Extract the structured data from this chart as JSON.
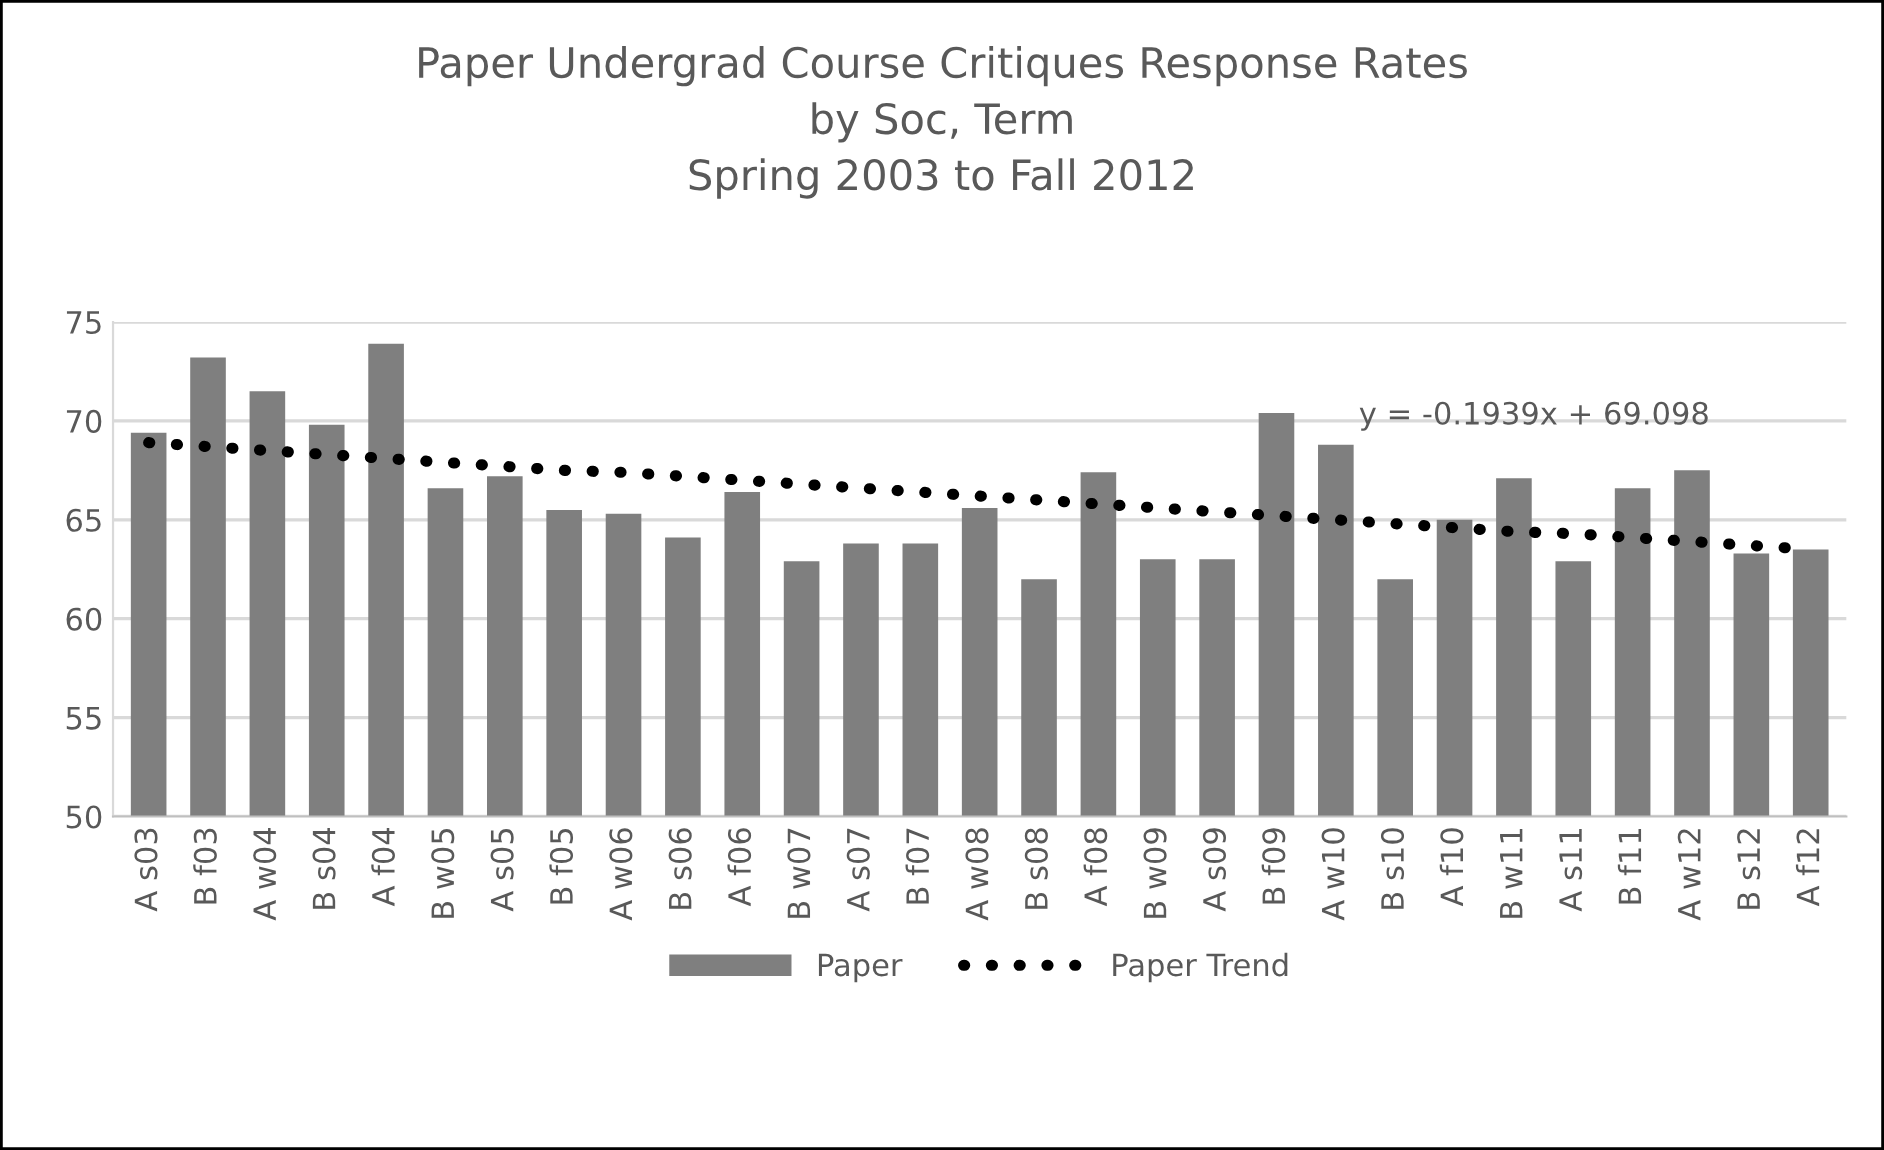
{
  "chart_data": {
    "type": "bar",
    "title": "Paper Undergrad Course Critiques Response Rates\nby Soc, Term\nSpring 2003 to Fall 2012",
    "categories": [
      "A s03",
      "B f03",
      "A w04",
      "B s04",
      "A f04",
      "B w05",
      "A s05",
      "B f05",
      "A w06",
      "B s06",
      "A f06",
      "B w07",
      "A s07",
      "B f07",
      "A w08",
      "B s08",
      "A f08",
      "B w09",
      "A s09",
      "B f09",
      "A w10",
      "B s10",
      "A f10",
      "B w11",
      "A s11",
      "B f11",
      "A w12",
      "B s12",
      "A f12"
    ],
    "series": [
      {
        "name": "Paper",
        "color": "#7f7f7f",
        "values": [
          69.4,
          73.2,
          71.5,
          69.8,
          73.9,
          66.6,
          67.2,
          65.5,
          65.3,
          64.1,
          66.4,
          62.9,
          63.8,
          63.8,
          65.6,
          62.0,
          67.4,
          63.0,
          63.0,
          70.4,
          68.8,
          62.0,
          65.0,
          67.1,
          62.9,
          66.6,
          67.5,
          63.3,
          63.5
        ]
      },
      {
        "name": "Paper Trend",
        "type": "line",
        "color": "#000000",
        "line_style": "dotted",
        "values": [
          68.9,
          68.7,
          68.5,
          68.3,
          68.1,
          67.9,
          67.7,
          67.5,
          67.4,
          67.2,
          67.0,
          66.8,
          66.6,
          66.4,
          66.2,
          66.0,
          65.8,
          65.6,
          65.4,
          65.2,
          65.0,
          64.8,
          64.6,
          64.4,
          64.3,
          64.1,
          63.9,
          63.7,
          63.5
        ]
      }
    ],
    "annotations": [
      "y = -0.1939x + 69.098"
    ],
    "ylim": [
      50,
      75
    ],
    "yticks": [
      50,
      55,
      60,
      65,
      70,
      75
    ],
    "grid": "y",
    "legend": "bottom"
  }
}
